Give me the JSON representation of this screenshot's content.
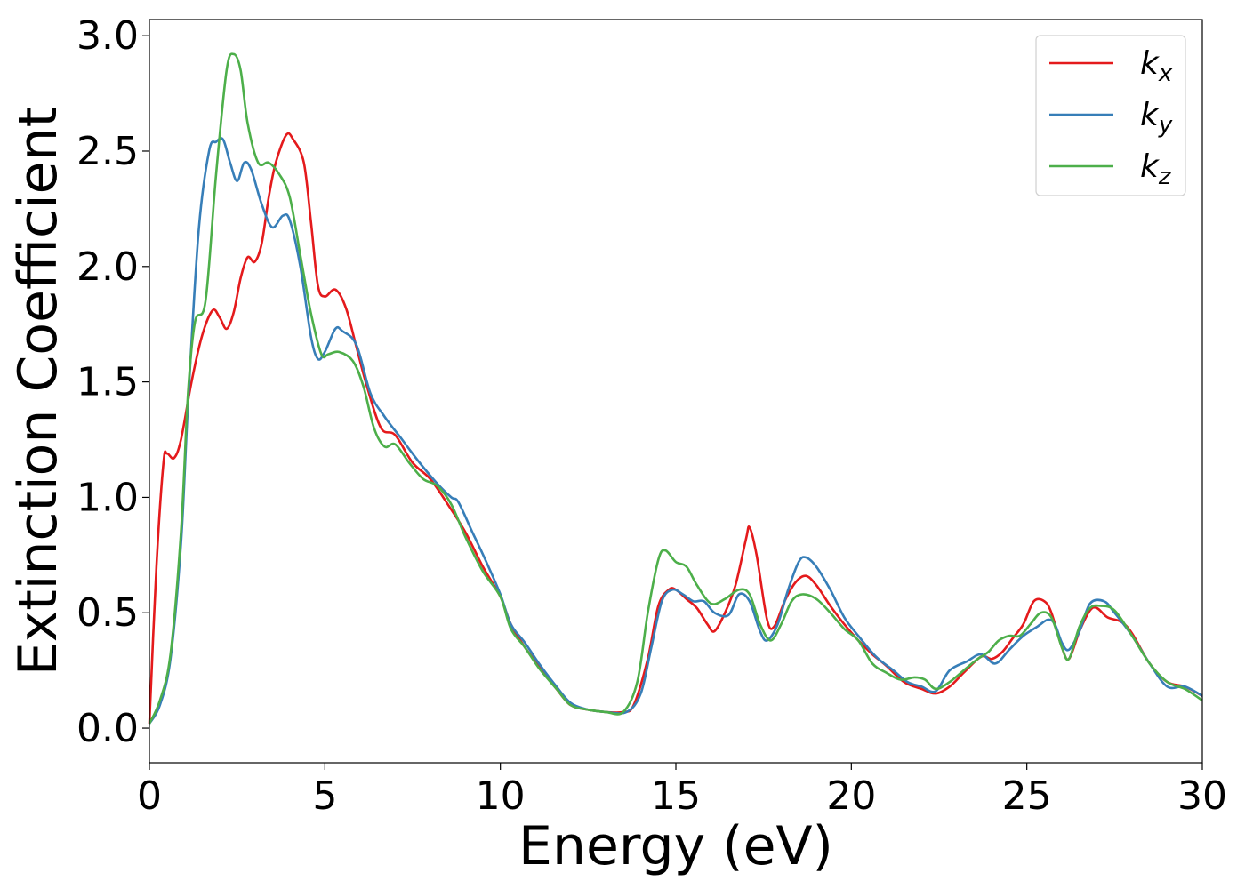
{
  "chart_data": {
    "type": "line",
    "xlabel": "Energy (eV)",
    "ylabel": "Extinction Coefficient",
    "xlim": [
      0,
      30
    ],
    "ylim": [
      -0.15,
      3.07
    ],
    "x_ticks": [
      "0",
      "5",
      "10",
      "15",
      "20",
      "25",
      "30"
    ],
    "y_ticks": [
      "0.0",
      "0.5",
      "1.0",
      "1.5",
      "2.0",
      "2.5",
      "3.0"
    ],
    "grid": false,
    "legend_position": "top-right",
    "series": [
      {
        "name": "k",
        "subscript": "x",
        "color": "#e41a1c",
        "points": [
          [
            0,
            0.02
          ],
          [
            0.2,
            0.7
          ],
          [
            0.4,
            1.15
          ],
          [
            0.5,
            1.19
          ],
          [
            0.7,
            1.17
          ],
          [
            0.9,
            1.25
          ],
          [
            1.2,
            1.5
          ],
          [
            1.5,
            1.7
          ],
          [
            1.8,
            1.81
          ],
          [
            2.0,
            1.78
          ],
          [
            2.2,
            1.73
          ],
          [
            2.4,
            1.8
          ],
          [
            2.6,
            1.95
          ],
          [
            2.8,
            2.04
          ],
          [
            3.0,
            2.02
          ],
          [
            3.2,
            2.1
          ],
          [
            3.4,
            2.3
          ],
          [
            3.6,
            2.45
          ],
          [
            3.9,
            2.57
          ],
          [
            4.1,
            2.55
          ],
          [
            4.4,
            2.45
          ],
          [
            4.6,
            2.2
          ],
          [
            4.8,
            1.92
          ],
          [
            5.0,
            1.87
          ],
          [
            5.3,
            1.9
          ],
          [
            5.6,
            1.82
          ],
          [
            5.9,
            1.65
          ],
          [
            6.2,
            1.48
          ],
          [
            6.6,
            1.3
          ],
          [
            7.0,
            1.27
          ],
          [
            7.5,
            1.15
          ],
          [
            8.0,
            1.08
          ],
          [
            8.5,
            0.97
          ],
          [
            9.0,
            0.85
          ],
          [
            9.5,
            0.7
          ],
          [
            10.0,
            0.57
          ],
          [
            10.3,
            0.45
          ],
          [
            10.7,
            0.35
          ],
          [
            11.2,
            0.25
          ],
          [
            11.6,
            0.17
          ],
          [
            12.0,
            0.1
          ],
          [
            12.5,
            0.08
          ],
          [
            13.0,
            0.07
          ],
          [
            13.5,
            0.07
          ],
          [
            13.8,
            0.1
          ],
          [
            14.2,
            0.3
          ],
          [
            14.5,
            0.53
          ],
          [
            14.8,
            0.6
          ],
          [
            15.0,
            0.6
          ],
          [
            15.3,
            0.56
          ],
          [
            15.6,
            0.52
          ],
          [
            15.9,
            0.45
          ],
          [
            16.1,
            0.42
          ],
          [
            16.4,
            0.5
          ],
          [
            16.7,
            0.62
          ],
          [
            17.0,
            0.82
          ],
          [
            17.1,
            0.87
          ],
          [
            17.3,
            0.75
          ],
          [
            17.6,
            0.47
          ],
          [
            17.8,
            0.44
          ],
          [
            18.1,
            0.55
          ],
          [
            18.4,
            0.63
          ],
          [
            18.7,
            0.66
          ],
          [
            19.0,
            0.62
          ],
          [
            19.4,
            0.53
          ],
          [
            19.8,
            0.45
          ],
          [
            20.2,
            0.38
          ],
          [
            20.6,
            0.32
          ],
          [
            21.0,
            0.27
          ],
          [
            21.5,
            0.2
          ],
          [
            22.0,
            0.17
          ],
          [
            22.4,
            0.15
          ],
          [
            22.8,
            0.18
          ],
          [
            23.2,
            0.24
          ],
          [
            23.7,
            0.31
          ],
          [
            24.0,
            0.3
          ],
          [
            24.3,
            0.33
          ],
          [
            24.6,
            0.39
          ],
          [
            24.9,
            0.45
          ],
          [
            25.2,
            0.55
          ],
          [
            25.5,
            0.55
          ],
          [
            25.7,
            0.5
          ],
          [
            26.0,
            0.35
          ],
          [
            26.2,
            0.3
          ],
          [
            26.5,
            0.42
          ],
          [
            26.8,
            0.51
          ],
          [
            27.0,
            0.52
          ],
          [
            27.3,
            0.48
          ],
          [
            27.7,
            0.46
          ],
          [
            28.0,
            0.41
          ],
          [
            28.5,
            0.28
          ],
          [
            29.0,
            0.2
          ],
          [
            29.5,
            0.18
          ],
          [
            30.0,
            0.14
          ]
        ]
      },
      {
        "name": "k",
        "subscript": "y",
        "color": "#377eb8",
        "points": [
          [
            0,
            0.02
          ],
          [
            0.3,
            0.1
          ],
          [
            0.6,
            0.3
          ],
          [
            0.9,
            0.8
          ],
          [
            1.1,
            1.4
          ],
          [
            1.4,
            2.15
          ],
          [
            1.7,
            2.5
          ],
          [
            1.9,
            2.54
          ],
          [
            2.1,
            2.55
          ],
          [
            2.3,
            2.45
          ],
          [
            2.5,
            2.37
          ],
          [
            2.7,
            2.45
          ],
          [
            2.9,
            2.42
          ],
          [
            3.2,
            2.27
          ],
          [
            3.5,
            2.17
          ],
          [
            3.8,
            2.22
          ],
          [
            4.0,
            2.2
          ],
          [
            4.3,
            2.0
          ],
          [
            4.6,
            1.7
          ],
          [
            4.8,
            1.6
          ],
          [
            5.0,
            1.63
          ],
          [
            5.3,
            1.73
          ],
          [
            5.5,
            1.72
          ],
          [
            5.9,
            1.66
          ],
          [
            6.3,
            1.45
          ],
          [
            6.7,
            1.35
          ],
          [
            7.2,
            1.25
          ],
          [
            7.7,
            1.15
          ],
          [
            8.2,
            1.06
          ],
          [
            8.6,
            1.0
          ],
          [
            8.8,
            0.98
          ],
          [
            9.2,
            0.85
          ],
          [
            9.6,
            0.72
          ],
          [
            10.0,
            0.58
          ],
          [
            10.3,
            0.45
          ],
          [
            10.7,
            0.37
          ],
          [
            11.1,
            0.28
          ],
          [
            11.6,
            0.18
          ],
          [
            12.0,
            0.11
          ],
          [
            12.5,
            0.08
          ],
          [
            13.0,
            0.07
          ],
          [
            13.6,
            0.07
          ],
          [
            14.0,
            0.15
          ],
          [
            14.3,
            0.35
          ],
          [
            14.6,
            0.55
          ],
          [
            14.9,
            0.6
          ],
          [
            15.2,
            0.58
          ],
          [
            15.5,
            0.55
          ],
          [
            15.8,
            0.55
          ],
          [
            16.1,
            0.5
          ],
          [
            16.5,
            0.49
          ],
          [
            16.8,
            0.58
          ],
          [
            17.1,
            0.55
          ],
          [
            17.4,
            0.42
          ],
          [
            17.6,
            0.38
          ],
          [
            17.9,
            0.45
          ],
          [
            18.2,
            0.6
          ],
          [
            18.5,
            0.72
          ],
          [
            18.7,
            0.74
          ],
          [
            19.0,
            0.7
          ],
          [
            19.4,
            0.6
          ],
          [
            19.8,
            0.48
          ],
          [
            20.2,
            0.4
          ],
          [
            20.7,
            0.31
          ],
          [
            21.2,
            0.25
          ],
          [
            21.6,
            0.2
          ],
          [
            22.0,
            0.18
          ],
          [
            22.4,
            0.16
          ],
          [
            22.8,
            0.25
          ],
          [
            23.3,
            0.29
          ],
          [
            23.7,
            0.32
          ],
          [
            24.1,
            0.28
          ],
          [
            24.5,
            0.34
          ],
          [
            24.9,
            0.4
          ],
          [
            25.3,
            0.44
          ],
          [
            25.6,
            0.47
          ],
          [
            25.8,
            0.45
          ],
          [
            26.0,
            0.37
          ],
          [
            26.2,
            0.34
          ],
          [
            26.5,
            0.42
          ],
          [
            26.8,
            0.54
          ],
          [
            27.2,
            0.55
          ],
          [
            27.5,
            0.5
          ],
          [
            28.0,
            0.4
          ],
          [
            28.5,
            0.28
          ],
          [
            29.0,
            0.18
          ],
          [
            29.5,
            0.18
          ],
          [
            30.0,
            0.14
          ]
        ]
      },
      {
        "name": "k",
        "subscript": "z",
        "color": "#4daf4a",
        "points": [
          [
            0,
            0.02
          ],
          [
            0.3,
            0.12
          ],
          [
            0.6,
            0.32
          ],
          [
            0.9,
            0.85
          ],
          [
            1.1,
            1.45
          ],
          [
            1.3,
            1.76
          ],
          [
            1.6,
            1.85
          ],
          [
            1.9,
            2.4
          ],
          [
            2.2,
            2.85
          ],
          [
            2.4,
            2.92
          ],
          [
            2.6,
            2.85
          ],
          [
            2.8,
            2.62
          ],
          [
            3.1,
            2.45
          ],
          [
            3.4,
            2.45
          ],
          [
            3.7,
            2.4
          ],
          [
            4.0,
            2.3
          ],
          [
            4.3,
            2.05
          ],
          [
            4.6,
            1.8
          ],
          [
            4.9,
            1.62
          ],
          [
            5.1,
            1.62
          ],
          [
            5.4,
            1.63
          ],
          [
            5.8,
            1.59
          ],
          [
            6.1,
            1.48
          ],
          [
            6.4,
            1.3
          ],
          [
            6.7,
            1.22
          ],
          [
            7.0,
            1.23
          ],
          [
            7.4,
            1.15
          ],
          [
            7.8,
            1.08
          ],
          [
            8.2,
            1.05
          ],
          [
            8.6,
            0.97
          ],
          [
            9.0,
            0.83
          ],
          [
            9.5,
            0.68
          ],
          [
            10.0,
            0.57
          ],
          [
            10.3,
            0.43
          ],
          [
            10.7,
            0.35
          ],
          [
            11.1,
            0.26
          ],
          [
            11.6,
            0.17
          ],
          [
            12.0,
            0.1
          ],
          [
            12.5,
            0.08
          ],
          [
            13.0,
            0.07
          ],
          [
            13.5,
            0.07
          ],
          [
            13.9,
            0.2
          ],
          [
            14.2,
            0.5
          ],
          [
            14.5,
            0.73
          ],
          [
            14.7,
            0.77
          ],
          [
            15.0,
            0.72
          ],
          [
            15.3,
            0.7
          ],
          [
            15.6,
            0.62
          ],
          [
            16.0,
            0.54
          ],
          [
            16.4,
            0.56
          ],
          [
            16.8,
            0.6
          ],
          [
            17.1,
            0.58
          ],
          [
            17.4,
            0.45
          ],
          [
            17.7,
            0.38
          ],
          [
            18.0,
            0.45
          ],
          [
            18.3,
            0.55
          ],
          [
            18.6,
            0.58
          ],
          [
            19.0,
            0.56
          ],
          [
            19.4,
            0.5
          ],
          [
            19.8,
            0.43
          ],
          [
            20.2,
            0.38
          ],
          [
            20.6,
            0.28
          ],
          [
            21.0,
            0.24
          ],
          [
            21.4,
            0.21
          ],
          [
            21.8,
            0.22
          ],
          [
            22.1,
            0.21
          ],
          [
            22.4,
            0.17
          ],
          [
            22.8,
            0.2
          ],
          [
            23.2,
            0.25
          ],
          [
            23.6,
            0.3
          ],
          [
            23.9,
            0.33
          ],
          [
            24.2,
            0.38
          ],
          [
            24.5,
            0.4
          ],
          [
            24.8,
            0.4
          ],
          [
            25.1,
            0.45
          ],
          [
            25.4,
            0.5
          ],
          [
            25.7,
            0.48
          ],
          [
            26.0,
            0.35
          ],
          [
            26.2,
            0.3
          ],
          [
            26.5,
            0.44
          ],
          [
            26.8,
            0.52
          ],
          [
            27.1,
            0.53
          ],
          [
            27.5,
            0.51
          ],
          [
            28.0,
            0.4
          ],
          [
            28.5,
            0.28
          ],
          [
            29.0,
            0.2
          ],
          [
            29.5,
            0.17
          ],
          [
            30.0,
            0.12
          ]
        ]
      }
    ]
  }
}
